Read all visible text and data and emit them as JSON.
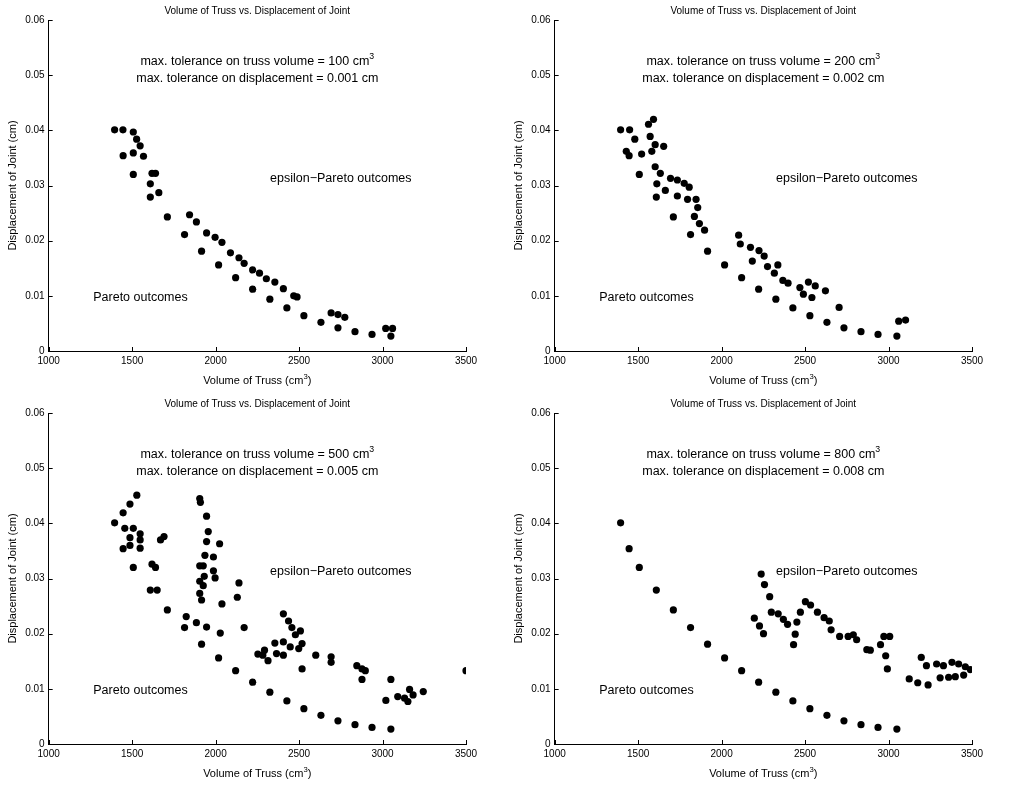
{
  "chart_data": [
    {
      "type": "scatter",
      "title": "Volume of Truss vs. Displacement of Joint",
      "xlabel": "Volume of Truss (cm$^{3}$)",
      "ylabel": "Displacement of Joint (cm)",
      "xlim": [
        1000,
        3500
      ],
      "ylim": [
        0,
        0.06
      ],
      "xticks": [
        1000,
        1500,
        2000,
        2500,
        3000,
        3500
      ],
      "yticks": [
        0,
        0.01,
        0.02,
        0.03,
        0.04,
        0.05,
        0.06
      ],
      "grid": false,
      "legend": false,
      "marker": "circle",
      "annotations": [
        "max. tolerance on truss volume = 100 cm$^{3}$",
        "max. tolerance on displacement = 0.001 cm",
        "epsilon−Pareto outcomes",
        "Pareto outcomes"
      ],
      "series": [
        {
          "color": "#000000",
          "x": [
            1395,
            1446,
            1507,
            1609,
            1711,
            1814,
            1916,
            2018,
            2120,
            2222,
            2325,
            2427,
            2529,
            2631,
            2733,
            2835,
            2937,
            3050
          ],
          "values": [
            0.0401,
            0.0354,
            0.032,
            0.0279,
            0.0243,
            0.0211,
            0.0181,
            0.0156,
            0.0133,
            0.0112,
            0.0094,
            0.0078,
            0.0064,
            0.0052,
            0.0042,
            0.0035,
            0.003,
            0.0027
          ]
        },
        {
          "color": "#000000",
          "x": [
            1445,
            1507,
            1527,
            1548,
            1507,
            1568,
            1619,
            1640,
            1609,
            1660,
            1844,
            1885,
            1946,
            1997,
            2038,
            2089,
            2140,
            2171,
            2222,
            2263,
            2304,
            2355,
            2406,
            2468,
            2488,
            2692,
            2733,
            2774,
            3019,
            3060
          ],
          "values": [
            0.0401,
            0.0397,
            0.0384,
            0.0372,
            0.0359,
            0.0353,
            0.0322,
            0.0322,
            0.0303,
            0.0287,
            0.0247,
            0.0234,
            0.0214,
            0.0206,
            0.0197,
            0.0178,
            0.0169,
            0.0159,
            0.0147,
            0.0141,
            0.0131,
            0.0125,
            0.0113,
            0.01,
            0.0098,
            0.0069,
            0.0066,
            0.0061,
            0.0041,
            0.0041
          ]
        }
      ]
    },
    {
      "type": "scatter",
      "title": "Volume of Truss vs. Displacement of Joint",
      "xlabel": "Volume of Truss (cm$^{3}$)",
      "ylabel": "Displacement of Joint (cm)",
      "xlim": [
        1000,
        3500
      ],
      "ylim": [
        0,
        0.06
      ],
      "xticks": [
        1000,
        1500,
        2000,
        2500,
        3000,
        3500
      ],
      "yticks": [
        0,
        0.01,
        0.02,
        0.03,
        0.04,
        0.05,
        0.06
      ],
      "grid": false,
      "legend": false,
      "marker": "circle",
      "annotations": [
        "max. tolerance on truss volume = 200 cm$^{3}$",
        "max. tolerance on displacement = 0.002 cm",
        "epsilon−Pareto outcomes",
        "Pareto outcomes"
      ],
      "series": [
        {
          "color": "#000000",
          "x": [
            1395,
            1446,
            1507,
            1609,
            1711,
            1814,
            1916,
            2018,
            2120,
            2222,
            2325,
            2427,
            2529,
            2631,
            2733,
            2835,
            2937,
            3050
          ],
          "values": [
            0.0401,
            0.0354,
            0.032,
            0.0279,
            0.0243,
            0.0211,
            0.0181,
            0.0156,
            0.0133,
            0.0112,
            0.0094,
            0.0078,
            0.0064,
            0.0052,
            0.0042,
            0.0035,
            0.003,
            0.0027
          ]
        },
        {
          "color": "#000000",
          "x": [
            1449,
            1480,
            1429,
            1521,
            1562,
            1592,
            1572,
            1582,
            1602,
            1653,
            1602,
            1633,
            1612,
            1663,
            1694,
            1735,
            1735,
            1776,
            1806,
            1796,
            1847,
            1857,
            1837,
            1867,
            1898,
            2102,
            2112,
            2173,
            2224,
            2184,
            2255,
            2275,
            2337,
            2316,
            2367,
            2398,
            2469,
            2520,
            2561,
            2622,
            2490,
            2541,
            2704,
            3061,
            3102
          ],
          "values": [
            0.0401,
            0.0384,
            0.0362,
            0.0357,
            0.0411,
            0.042,
            0.0389,
            0.0362,
            0.0374,
            0.0371,
            0.0334,
            0.0322,
            0.0303,
            0.0291,
            0.0313,
            0.031,
            0.0281,
            0.0304,
            0.0297,
            0.0275,
            0.0275,
            0.026,
            0.0244,
            0.0231,
            0.0219,
            0.021,
            0.0194,
            0.0188,
            0.0182,
            0.0163,
            0.0172,
            0.0153,
            0.0156,
            0.0141,
            0.0128,
            0.0123,
            0.0115,
            0.0125,
            0.0118,
            0.0109,
            0.0103,
            0.0097,
            0.0079,
            0.0054,
            0.0056
          ]
        }
      ]
    },
    {
      "type": "scatter",
      "title": "Volume of Truss vs. Displacement of Joint",
      "xlabel": "Volume of Truss (cm$^{3}$)",
      "ylabel": "Displacement of Joint (cm)",
      "xlim": [
        1000,
        3500
      ],
      "ylim": [
        0,
        0.06
      ],
      "xticks": [
        1000,
        1500,
        2000,
        2500,
        3000,
        3500
      ],
      "yticks": [
        0,
        0.01,
        0.02,
        0.03,
        0.04,
        0.05,
        0.06
      ],
      "grid": false,
      "legend": false,
      "marker": "circle",
      "annotations": [
        "max. tolerance on truss volume = 500 cm$^{3}$",
        "max. tolerance on displacement = 0.005 cm",
        "epsilon−Pareto outcomes",
        "Pareto outcomes"
      ],
      "series": [
        {
          "color": "#000000",
          "x": [
            1395,
            1446,
            1507,
            1609,
            1711,
            1814,
            1916,
            2018,
            2120,
            2222,
            2325,
            2427,
            2529,
            2631,
            2733,
            2835,
            2937,
            3050
          ],
          "values": [
            0.0401,
            0.0354,
            0.032,
            0.0279,
            0.0243,
            0.0211,
            0.0181,
            0.0156,
            0.0133,
            0.0112,
            0.0094,
            0.0078,
            0.0064,
            0.0052,
            0.0042,
            0.0035,
            0.003,
            0.0027
          ]
        },
        {
          "color": "#000000",
          "x": [
            1446,
            1487,
            1528,
            1456,
            1507,
            1487,
            1548,
            1548,
            1548,
            1487,
            1619,
            1640,
            1650,
            1670,
            1691,
            1824,
            1885,
            1946,
            2028,
            1905,
            1909,
            1946,
            1956,
            1946,
            1936,
            1926,
            1905,
            1932,
            1905,
            1926,
            1905,
            1916,
            1987,
            1987,
            1997,
            2024,
            2038,
            2140,
            2130,
            2171,
            2253,
            2283,
            2314,
            2293,
            2355,
            2406,
            2406,
            2437,
            2457,
            2478,
            2447,
            2498,
            2508,
            2518,
            2365,
            2406,
            2518,
            2600,
            2692,
            2692,
            2846,
            2877,
            2897,
            2877,
            3020,
            3050,
            3091,
            3132,
            3162,
            3183,
            3152,
            3244,
            3500
          ],
          "values": [
            0.0419,
            0.0435,
            0.0451,
            0.0391,
            0.0391,
            0.0374,
            0.037,
            0.0381,
            0.0355,
            0.036,
            0.0326,
            0.032,
            0.0279,
            0.037,
            0.0376,
            0.0231,
            0.022,
            0.0212,
            0.0201,
            0.0445,
            0.0438,
            0.0413,
            0.0385,
            0.0367,
            0.0342,
            0.0323,
            0.0323,
            0.0304,
            0.0295,
            0.0287,
            0.0273,
            0.0261,
            0.0339,
            0.0314,
            0.0301,
            0.0363,
            0.0254,
            0.0292,
            0.0266,
            0.0211,
            0.0163,
            0.0161,
            0.0151,
            0.017,
            0.0183,
            0.0185,
            0.0236,
            0.0223,
            0.0211,
            0.0198,
            0.0176,
            0.0173,
            0.0205,
            0.0182,
            0.0164,
            0.0161,
            0.0136,
            0.0161,
            0.0158,
            0.0148,
            0.0142,
            0.0136,
            0.0133,
            0.0117,
            0.0079,
            0.0117,
            0.0086,
            0.0083,
            0.0099,
            0.0089,
            0.0077,
            0.0095,
            0.0133
          ]
        }
      ]
    },
    {
      "type": "scatter",
      "title": "Volume of Truss vs. Displacement of Joint",
      "xlabel": "Volume of Truss (cm$^{3}$)",
      "ylabel": "Displacement of Joint (cm)",
      "xlim": [
        1000,
        3500
      ],
      "ylim": [
        0,
        0.06
      ],
      "xticks": [
        1000,
        1500,
        2000,
        2500,
        3000,
        3500
      ],
      "yticks": [
        0,
        0.01,
        0.02,
        0.03,
        0.04,
        0.05,
        0.06
      ],
      "grid": false,
      "legend": false,
      "marker": "circle",
      "annotations": [
        "max. tolerance on truss volume = 800 cm$^{3}$",
        "max. tolerance on displacement = 0.008 cm",
        "epsilon−Pareto outcomes",
        "Pareto outcomes"
      ],
      "series": [
        {
          "color": "#000000",
          "x": [
            1395,
            1446,
            1507,
            1609,
            1711,
            1814,
            1916,
            2018,
            2120,
            2222,
            2325,
            2427,
            2529,
            2631,
            2733,
            2835,
            2937,
            3050
          ],
          "values": [
            0.0401,
            0.0354,
            0.032,
            0.0279,
            0.0243,
            0.0211,
            0.0181,
            0.0156,
            0.0133,
            0.0112,
            0.0094,
            0.0078,
            0.0064,
            0.0052,
            0.0042,
            0.0035,
            0.003,
            0.0027
          ]
        },
        {
          "color": "#000000",
          "x": [
            2237,
            2257,
            2288,
            2298,
            2339,
            2370,
            2395,
            2196,
            2227,
            2251,
            2431,
            2441,
            2451,
            2472,
            2502,
            2533,
            2574,
            2614,
            2645,
            2656,
            2707,
            2758,
            2789,
            2809,
            2870,
            2891,
            2952,
            2972,
            3007,
            2983,
            2993,
            3124,
            3175,
            3196,
            3227,
            3237,
            3288,
            3309,
            3329,
            3380,
            3420,
            3460,
            3490,
            3400,
            3450,
            3360
          ],
          "values": [
            0.0308,
            0.0289,
            0.0267,
            0.0239,
            0.0236,
            0.0226,
            0.0217,
            0.0228,
            0.0214,
            0.02,
            0.018,
            0.0199,
            0.0221,
            0.0239,
            0.0258,
            0.0252,
            0.0239,
            0.0229,
            0.0223,
            0.0207,
            0.0195,
            0.0195,
            0.0198,
            0.0189,
            0.0171,
            0.017,
            0.018,
            0.0195,
            0.0195,
            0.016,
            0.0136,
            0.0118,
            0.0111,
            0.0157,
            0.0142,
            0.0107,
            0.0145,
            0.012,
            0.0142,
            0.0148,
            0.0145,
            0.014,
            0.0135,
            0.0122,
            0.0125,
            0.0121
          ]
        }
      ]
    }
  ]
}
